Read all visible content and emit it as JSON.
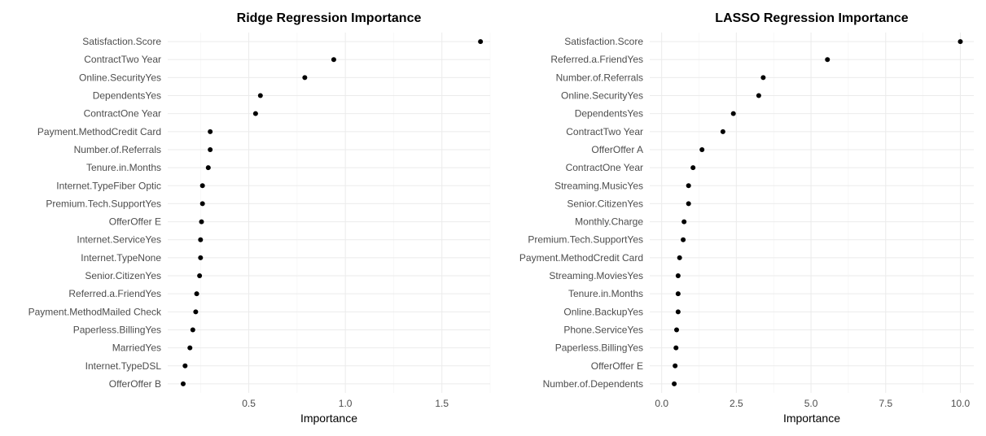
{
  "chart_data": [
    {
      "type": "scatter",
      "title": "Ridge Regression Importance",
      "xlabel": "Importance",
      "ylabel": "",
      "xlim": [
        0.08,
        1.75
      ],
      "x_ticks": [
        0.5,
        1.0,
        1.5
      ],
      "x_tick_labels": [
        "0.5",
        "1.0",
        "1.5"
      ],
      "grid": true,
      "categories": [
        "Satisfaction.Score",
        "ContractTwo Year",
        "Online.SecurityYes",
        "DependentsYes",
        "ContractOne Year",
        "Payment.MethodCredit Card",
        "Number.of.Referrals",
        "Tenure.in.Months",
        "Internet.TypeFiber Optic",
        "Premium.Tech.SupportYes",
        "OfferOffer E",
        "Internet.ServiceYes",
        "Internet.TypeNone",
        "Senior.CitizenYes",
        "Referred.a.FriendYes",
        "Payment.MethodMailed Check",
        "Paperless.BillingYes",
        "MarriedYes",
        "Internet.TypeDSL",
        "OfferOffer B"
      ],
      "values": [
        1.7,
        0.94,
        0.79,
        0.56,
        0.535,
        0.3,
        0.3,
        0.29,
        0.26,
        0.26,
        0.255,
        0.25,
        0.25,
        0.245,
        0.23,
        0.225,
        0.21,
        0.195,
        0.17,
        0.16
      ]
    },
    {
      "type": "scatter",
      "title": "LASSO Regression Importance",
      "xlabel": "Importance",
      "ylabel": "",
      "xlim": [
        -0.4,
        10.45
      ],
      "x_ticks": [
        0,
        2.5,
        5,
        7.5,
        10
      ],
      "x_tick_labels": [
        "0.0",
        "2.5",
        "5.0",
        "7.5",
        "10.0"
      ],
      "grid": true,
      "categories": [
        "Satisfaction.Score",
        "Referred.a.FriendYes",
        "Number.of.Referrals",
        "Online.SecurityYes",
        "DependentsYes",
        "ContractTwo Year",
        "OfferOffer A",
        "ContractOne Year",
        "Streaming.MusicYes",
        "Senior.CitizenYes",
        "Monthly.Charge",
        "Premium.Tech.SupportYes",
        "Payment.MethodCredit Card",
        "Streaming.MoviesYes",
        "Tenure.in.Months",
        "Online.BackupYes",
        "Phone.ServiceYes",
        "Paperless.BillingYes",
        "OfferOffer E",
        "Number.of.Dependents"
      ],
      "values": [
        10.0,
        5.55,
        3.4,
        3.25,
        2.4,
        2.05,
        1.35,
        1.05,
        0.9,
        0.9,
        0.75,
        0.72,
        0.6,
        0.55,
        0.55,
        0.55,
        0.5,
        0.48,
        0.45,
        0.42
      ]
    }
  ]
}
